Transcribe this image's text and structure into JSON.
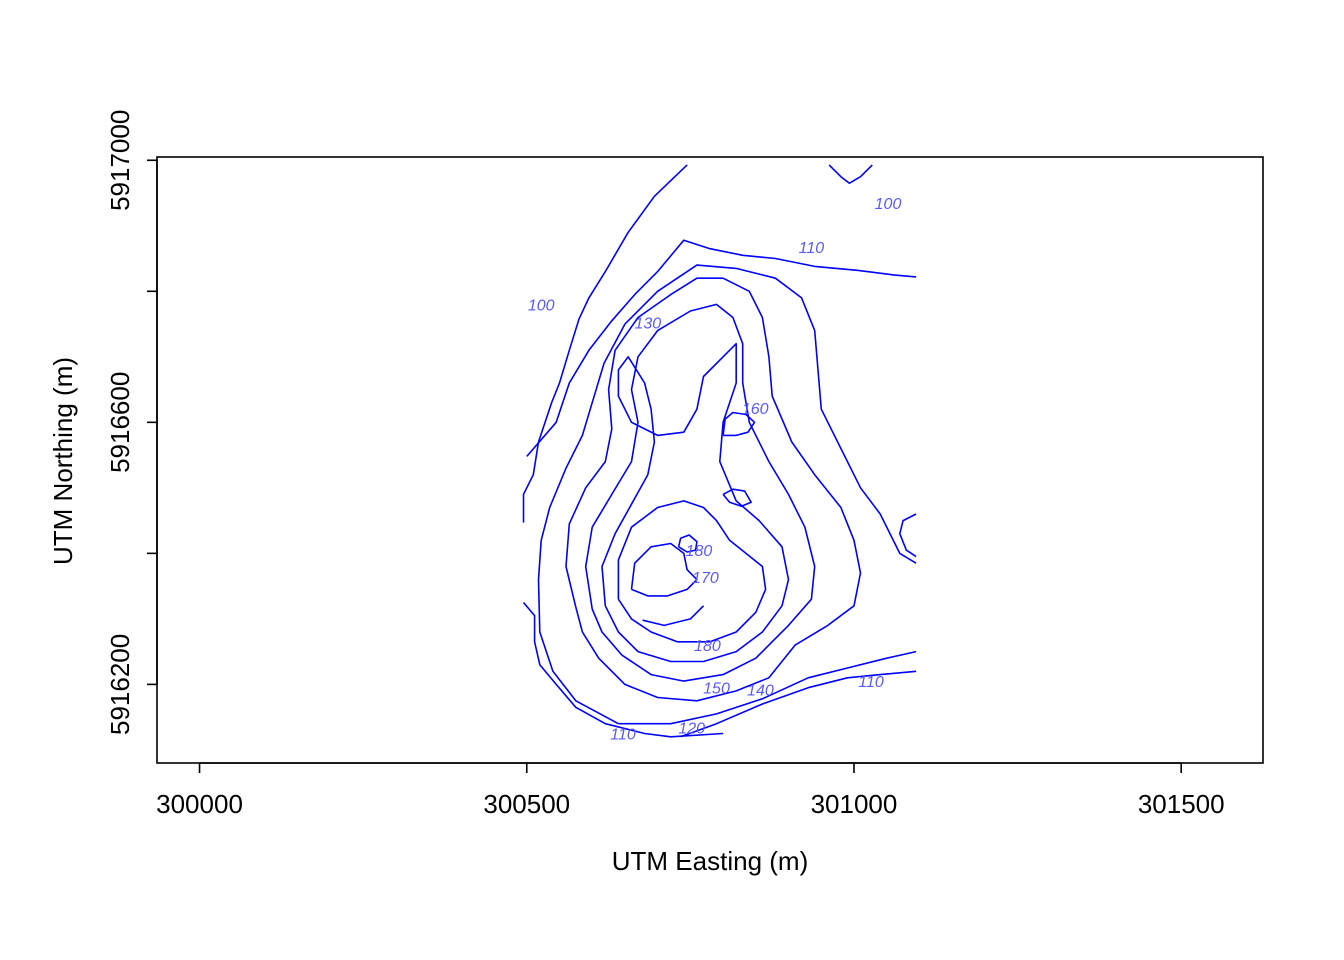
{
  "chart_data": {
    "type": "contour",
    "xlabel": "UTM Easting (m)",
    "ylabel": "UTM Northing (m)",
    "xlim": [
      299935,
      301625
    ],
    "ylim": [
      5916080,
      5917005
    ],
    "x_ticks": [
      300000,
      300500,
      301000,
      301500
    ],
    "x_tick_labels": [
      "300000",
      "300500",
      "301000",
      "301500"
    ],
    "y_ticks": [
      5916200,
      5916400,
      5916600,
      5916800,
      5917000
    ],
    "y_tick_labels": [
      "5916200",
      "",
      "5916600",
      "",
      "5917000"
    ],
    "grid": false,
    "line_color": "#0000ff",
    "label_color": "#5a5aff",
    "contour_labels": [
      {
        "text": "100",
        "x": 300522,
        "y": 5916780
      },
      {
        "text": "100",
        "x": 301052,
        "y": 5916935
      },
      {
        "text": "110",
        "x": 300935,
        "y": 5916868
      },
      {
        "text": "110",
        "x": 301026,
        "y": 5916205
      },
      {
        "text": "110",
        "x": 300647,
        "y": 5916125
      },
      {
        "text": "120",
        "x": 300752,
        "y": 5916134
      },
      {
        "text": "130",
        "x": 300685,
        "y": 5916752
      },
      {
        "text": "140",
        "x": 300857,
        "y": 5916192
      },
      {
        "text": "150",
        "x": 300790,
        "y": 5916195
      },
      {
        "text": "160",
        "x": 300849,
        "y": 5916622
      },
      {
        "text": "170",
        "x": 300773,
        "y": 5916364
      },
      {
        "text": "180",
        "x": 300776,
        "y": 5916260
      },
      {
        "text": "180",
        "x": 300763,
        "y": 5916405
      }
    ],
    "contours": [
      {
        "level": 100,
        "points": [
          [
            300495,
            5916447
          ],
          [
            300495,
            5916490
          ],
          [
            300510,
            5916520
          ],
          [
            300518,
            5916570
          ],
          [
            300538,
            5916630
          ],
          [
            300550,
            5916660
          ],
          [
            300565,
            5916710
          ],
          [
            300580,
            5916758
          ],
          [
            300595,
            5916790
          ],
          [
            300620,
            5916830
          ],
          [
            300655,
            5916890
          ],
          [
            300695,
            5916945
          ],
          [
            300745,
            5916993
          ]
        ]
      },
      {
        "level": 100,
        "points": [
          [
            300962,
            5916993
          ],
          [
            300980,
            5916975
          ],
          [
            300993,
            5916965
          ],
          [
            301010,
            5916975
          ],
          [
            301028,
            5916993
          ]
        ]
      },
      {
        "level": 110,
        "points": [
          [
            300495,
            5916325
          ],
          [
            300512,
            5916305
          ],
          [
            300512,
            5916265
          ],
          [
            300520,
            5916230
          ],
          [
            300545,
            5916200
          ],
          [
            300575,
            5916165
          ],
          [
            300620,
            5916140
          ],
          [
            300680,
            5916125
          ],
          [
            300720,
            5916120
          ],
          [
            300800,
            5916125
          ]
        ]
      },
      {
        "level": 110,
        "points": [
          [
            300735,
            5916120
          ],
          [
            300790,
            5916140
          ],
          [
            300860,
            5916170
          ],
          [
            300930,
            5916195
          ],
          [
            300990,
            5916210
          ],
          [
            301040,
            5916215
          ],
          [
            301095,
            5916220
          ]
        ]
      },
      {
        "level": 110,
        "points": [
          [
            300500,
            5916548
          ],
          [
            300545,
            5916600
          ],
          [
            300565,
            5916660
          ],
          [
            300595,
            5916710
          ],
          [
            300630,
            5916755
          ],
          [
            300665,
            5916795
          ],
          [
            300700,
            5916830
          ],
          [
            300740,
            5916878
          ],
          [
            300780,
            5916865
          ],
          [
            300830,
            5916855
          ],
          [
            300880,
            5916850
          ],
          [
            300940,
            5916838
          ],
          [
            301005,
            5916832
          ],
          [
            301060,
            5916825
          ],
          [
            301095,
            5916822
          ]
        ]
      },
      {
        "level": 110,
        "points": [
          [
            301095,
            5916460
          ],
          [
            301075,
            5916450
          ],
          [
            301070,
            5916430
          ],
          [
            301080,
            5916405
          ],
          [
            301095,
            5916395
          ]
        ]
      },
      {
        "level": 120,
        "points": [
          [
            300640,
            5916140
          ],
          [
            300575,
            5916175
          ],
          [
            300540,
            5916220
          ],
          [
            300520,
            5916280
          ],
          [
            300518,
            5916360
          ],
          [
            300522,
            5916420
          ],
          [
            300535,
            5916470
          ],
          [
            300560,
            5916530
          ],
          [
            300585,
            5916580
          ],
          [
            300600,
            5916630
          ],
          [
            300618,
            5916690
          ],
          [
            300650,
            5916750
          ],
          [
            300700,
            5916800
          ],
          [
            300760,
            5916840
          ],
          [
            300820,
            5916835
          ],
          [
            300880,
            5916820
          ],
          [
            300920,
            5916790
          ],
          [
            300940,
            5916740
          ],
          [
            300945,
            5916680
          ],
          [
            300950,
            5916620
          ],
          [
            300980,
            5916560
          ],
          [
            301010,
            5916500
          ],
          [
            301040,
            5916460
          ],
          [
            301070,
            5916400
          ],
          [
            301095,
            5916385
          ]
        ]
      },
      {
        "level": 120,
        "points": [
          [
            301095,
            5916250
          ],
          [
            301050,
            5916240
          ],
          [
            300990,
            5916225
          ],
          [
            300930,
            5916210
          ],
          [
            300860,
            5916178
          ],
          [
            300790,
            5916155
          ],
          [
            300720,
            5916140
          ],
          [
            300640,
            5916140
          ]
        ]
      },
      {
        "level": 130,
        "points": [
          [
            300575,
            5916318
          ],
          [
            300560,
            5916380
          ],
          [
            300565,
            5916445
          ],
          [
            300590,
            5916500
          ],
          [
            300620,
            5916540
          ],
          [
            300630,
            5916590
          ],
          [
            300625,
            5916650
          ],
          [
            300635,
            5916710
          ],
          [
            300670,
            5916760
          ],
          [
            300720,
            5916795
          ],
          [
            300760,
            5916820
          ],
          [
            300800,
            5916820
          ],
          [
            300840,
            5916800
          ],
          [
            300860,
            5916760
          ],
          [
            300870,
            5916700
          ],
          [
            300875,
            5916640
          ],
          [
            300905,
            5916570
          ],
          [
            300940,
            5916520
          ],
          [
            300980,
            5916470
          ],
          [
            301000,
            5916420
          ],
          [
            301010,
            5916370
          ],
          [
            301000,
            5916320
          ],
          [
            300960,
            5916290
          ],
          [
            300910,
            5916260
          ],
          [
            300870,
            5916210
          ],
          [
            300820,
            5916190
          ],
          [
            300760,
            5916175
          ],
          [
            300700,
            5916180
          ],
          [
            300650,
            5916200
          ],
          [
            300610,
            5916240
          ],
          [
            300585,
            5916280
          ],
          [
            300575,
            5916318
          ]
        ]
      },
      {
        "level": 140,
        "points": [
          [
            300600,
            5916315
          ],
          [
            300590,
            5916380
          ],
          [
            300600,
            5916440
          ],
          [
            300630,
            5916490
          ],
          [
            300660,
            5916540
          ],
          [
            300670,
            5916600
          ],
          [
            300660,
            5916650
          ],
          [
            300670,
            5916700
          ],
          [
            300700,
            5916740
          ],
          [
            300750,
            5916770
          ],
          [
            300790,
            5916780
          ],
          [
            300815,
            5916760
          ],
          [
            300830,
            5916720
          ],
          [
            300830,
            5916660
          ],
          [
            300840,
            5916600
          ],
          [
            300870,
            5916540
          ],
          [
            300900,
            5916490
          ],
          [
            300925,
            5916440
          ],
          [
            300940,
            5916380
          ],
          [
            300935,
            5916330
          ],
          [
            300900,
            5916290
          ],
          [
            300850,
            5916240
          ],
          [
            300800,
            5916215
          ],
          [
            300740,
            5916205
          ],
          [
            300690,
            5916215
          ],
          [
            300645,
            5916245
          ],
          [
            300615,
            5916280
          ],
          [
            300600,
            5916315
          ]
        ]
      },
      {
        "level": 150,
        "points": [
          [
            300620,
            5916320
          ],
          [
            300615,
            5916380
          ],
          [
            300635,
            5916430
          ],
          [
            300660,
            5916475
          ],
          [
            300685,
            5916520
          ],
          [
            300695,
            5916570
          ],
          [
            300690,
            5916620
          ],
          [
            300680,
            5916660
          ],
          [
            300655,
            5916700
          ],
          [
            300640,
            5916680
          ],
          [
            300640,
            5916640
          ],
          [
            300660,
            5916600
          ],
          [
            300700,
            5916580
          ],
          [
            300740,
            5916585
          ],
          [
            300760,
            5916620
          ],
          [
            300770,
            5916670
          ],
          [
            300800,
            5916700
          ],
          [
            300820,
            5916720
          ],
          [
            300820,
            5916660
          ],
          [
            300800,
            5916600
          ],
          [
            300795,
            5916540
          ],
          [
            300820,
            5916480
          ],
          [
            300855,
            5916450
          ],
          [
            300890,
            5916410
          ],
          [
            300900,
            5916360
          ],
          [
            300890,
            5916320
          ],
          [
            300860,
            5916280
          ],
          [
            300820,
            5916250
          ],
          [
            300770,
            5916235
          ],
          [
            300720,
            5916235
          ],
          [
            300670,
            5916250
          ],
          [
            300640,
            5916280
          ],
          [
            300620,
            5916320
          ]
        ]
      },
      {
        "level": 160,
        "points": [
          [
            300640,
            5916330
          ],
          [
            300640,
            5916390
          ],
          [
            300660,
            5916440
          ],
          [
            300700,
            5916470
          ],
          [
            300740,
            5916480
          ],
          [
            300770,
            5916470
          ],
          [
            300790,
            5916450
          ],
          [
            300810,
            5916420
          ],
          [
            300835,
            5916400
          ],
          [
            300860,
            5916380
          ],
          [
            300865,
            5916345
          ],
          [
            300850,
            5916310
          ],
          [
            300820,
            5916280
          ],
          [
            300780,
            5916265
          ],
          [
            300730,
            5916265
          ],
          [
            300690,
            5916280
          ],
          [
            300660,
            5916300
          ],
          [
            300640,
            5916330
          ]
        ]
      },
      {
        "level": 160,
        "points": [
          [
            300800,
            5916580
          ],
          [
            300820,
            5916580
          ],
          [
            300838,
            5916585
          ],
          [
            300848,
            5916600
          ],
          [
            300835,
            5916612
          ],
          [
            300815,
            5916615
          ],
          [
            300803,
            5916605
          ],
          [
            300800,
            5916580
          ]
        ]
      },
      {
        "level": 170,
        "points": [
          [
            300660,
            5916345
          ],
          [
            300665,
            5916385
          ],
          [
            300690,
            5916410
          ],
          [
            300720,
            5916415
          ],
          [
            300740,
            5916400
          ],
          [
            300745,
            5916375
          ],
          [
            300760,
            5916360
          ],
          [
            300745,
            5916345
          ],
          [
            300715,
            5916335
          ],
          [
            300685,
            5916335
          ],
          [
            300660,
            5916345
          ]
        ]
      },
      {
        "level": 170,
        "points": [
          [
            300800,
            5916490
          ],
          [
            300810,
            5916478
          ],
          [
            300828,
            5916472
          ],
          [
            300843,
            5916478
          ],
          [
            300833,
            5916495
          ],
          [
            300815,
            5916498
          ],
          [
            300800,
            5916490
          ]
        ]
      },
      {
        "level": 180,
        "points": [
          [
            300677,
            5916298
          ],
          [
            300710,
            5916290
          ],
          [
            300750,
            5916300
          ],
          [
            300770,
            5916320
          ]
        ]
      },
      {
        "level": 180,
        "points": [
          [
            300732,
            5916410
          ],
          [
            300745,
            5916402
          ],
          [
            300758,
            5916405
          ],
          [
            300760,
            5916418
          ],
          [
            300748,
            5916428
          ],
          [
            300735,
            5916423
          ],
          [
            300732,
            5916410
          ]
        ]
      }
    ]
  }
}
